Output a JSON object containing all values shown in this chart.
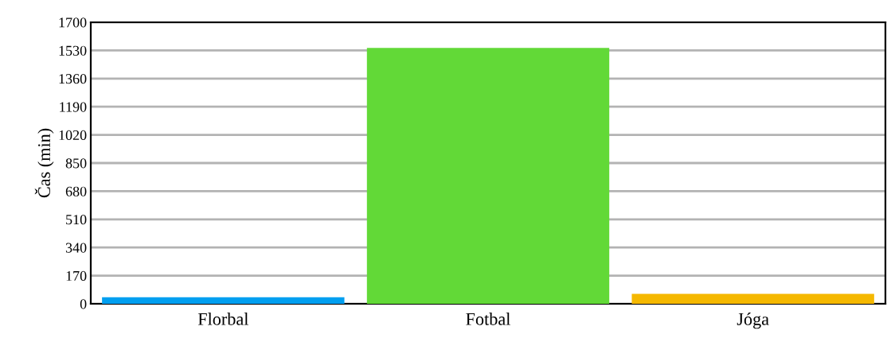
{
  "chart_data": {
    "type": "bar",
    "ylabel": "Čas (min)",
    "categories": [
      "Florbal",
      "Fotbal",
      "Jóga"
    ],
    "values": [
      40,
      1545,
      60
    ],
    "colors": [
      "#009ff0",
      "#62d937",
      "#f5b800"
    ],
    "ylim": [
      0,
      1700
    ],
    "yticks": [
      0,
      170,
      340,
      510,
      680,
      850,
      1020,
      1190,
      1360,
      1530,
      1700
    ],
    "grid": "y",
    "legend": false
  }
}
